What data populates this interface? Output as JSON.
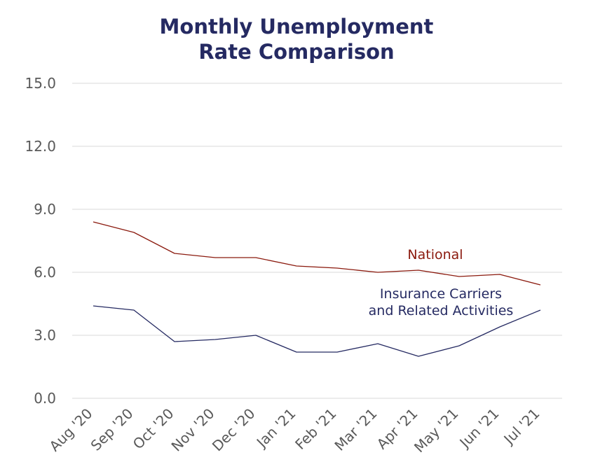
{
  "chart_data": {
    "type": "line",
    "title": [
      "Monthly Unemployment",
      "Rate Comparison"
    ],
    "categories": [
      "Aug '20",
      "Sep '20",
      "Oct '20",
      "Nov '20",
      "Dec '20",
      "Jan '21",
      "Feb '21",
      "Mar '21",
      "Apr '21",
      "May '21",
      "Jun '21",
      "Jul '21"
    ],
    "yticks": [
      "0.0",
      "3.0",
      "6.0",
      "9.0",
      "12.0",
      "15.0"
    ],
    "ylim": [
      0,
      15
    ],
    "grid": true,
    "series": [
      {
        "name": "National",
        "label_lines": [
          "National"
        ],
        "color": "#8b1a0e",
        "values": [
          8.4,
          7.9,
          6.9,
          6.7,
          6.7,
          6.3,
          6.2,
          6.0,
          6.1,
          5.8,
          5.9,
          5.4
        ]
      },
      {
        "name": "Insurance Carriers and Related Activities",
        "label_lines": [
          "Insurance Carriers",
          "and Related Activities"
        ],
        "color": "#252a62",
        "values": [
          4.4,
          4.2,
          2.7,
          2.8,
          3.0,
          2.2,
          2.2,
          2.6,
          2.0,
          2.5,
          3.4,
          4.2
        ]
      }
    ]
  },
  "colors": {
    "title": "#252a62",
    "axis_text": "#595959",
    "grid": "#d9d9d9"
  }
}
